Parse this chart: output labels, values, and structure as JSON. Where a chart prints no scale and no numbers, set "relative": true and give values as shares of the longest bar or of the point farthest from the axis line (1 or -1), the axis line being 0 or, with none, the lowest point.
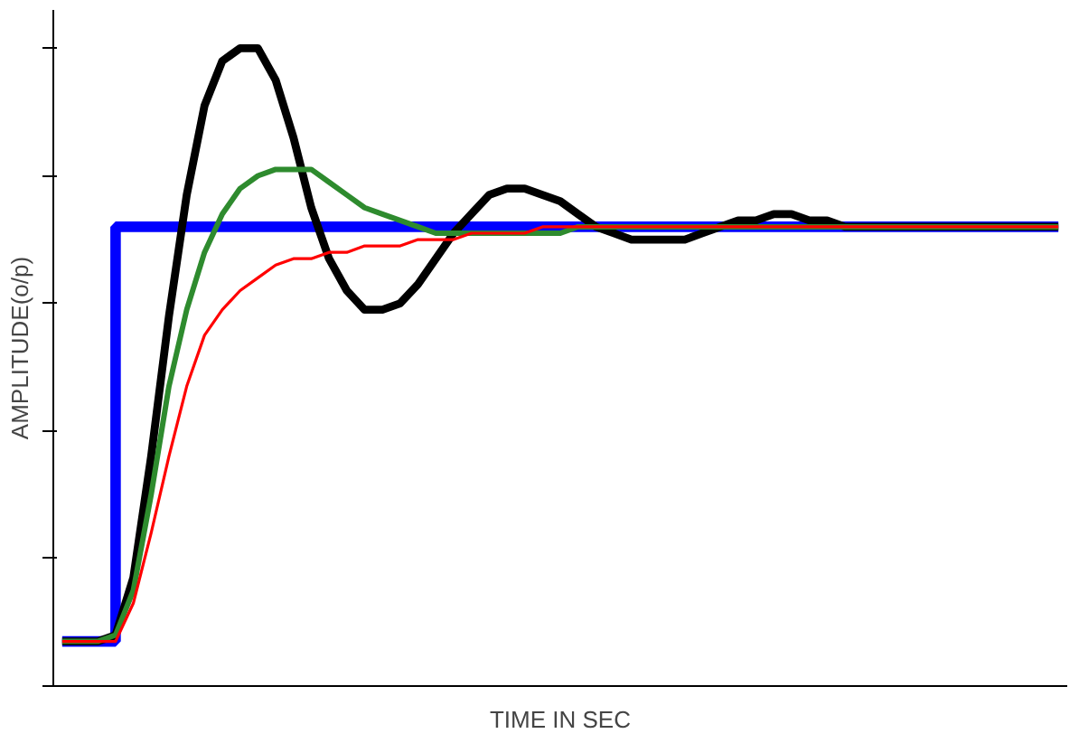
{
  "chart_data": {
    "type": "line",
    "xlabel": "TIME IN SEC",
    "ylabel": "AMPLITUDE(o/p)",
    "relative": true,
    "grid": false,
    "tick_labels": false,
    "categories": [
      null,
      null,
      null,
      null,
      null,
      null,
      null,
      null,
      null,
      null,
      null,
      null,
      null,
      null,
      null,
      null,
      null,
      null,
      null,
      null,
      null,
      null,
      null,
      null,
      null,
      null,
      null,
      null,
      null,
      null,
      null,
      null,
      null,
      null,
      null,
      null,
      null,
      null,
      null,
      null,
      null,
      null,
      null,
      null,
      null,
      null,
      null,
      null,
      null,
      null,
      null,
      null,
      null,
      null,
      null,
      null,
      null
    ],
    "series": [
      {
        "type": "step",
        "color": "#0000ff",
        "values": [
          0.07,
          0.07,
          0.07,
          0.72,
          0.72,
          0.72,
          0.72,
          0.72,
          0.72,
          0.72,
          0.72,
          0.72,
          0.72,
          0.72,
          0.72,
          0.72,
          0.72,
          0.72,
          0.72,
          0.72,
          0.72,
          0.72,
          0.72,
          0.72,
          0.72,
          0.72,
          0.72,
          0.72,
          0.72,
          0.72,
          0.72,
          0.72,
          0.72,
          0.72,
          0.72,
          0.72,
          0.72,
          0.72,
          0.72,
          0.72,
          0.72,
          0.72,
          0.72,
          0.72,
          0.72,
          0.72,
          0.72,
          0.72,
          0.72,
          0.72,
          0.72,
          0.72,
          0.72,
          0.72,
          0.72,
          0.72,
          0.72
        ]
      },
      {
        "color": "#000000",
        "values": [
          0.07,
          0.07,
          0.07,
          0.08,
          0.17,
          0.36,
          0.58,
          0.77,
          0.91,
          0.98,
          1.0,
          1.0,
          0.95,
          0.86,
          0.75,
          0.67,
          0.62,
          0.59,
          0.59,
          0.6,
          0.63,
          0.67,
          0.71,
          0.74,
          0.77,
          0.78,
          0.78,
          0.77,
          0.76,
          0.74,
          0.72,
          0.71,
          0.7,
          0.7,
          0.7,
          0.7,
          0.71,
          0.72,
          0.73,
          0.73,
          0.74,
          0.74,
          0.73,
          0.73,
          0.72,
          0.72,
          0.72,
          0.72,
          0.72,
          0.72,
          0.72,
          0.72,
          0.72,
          0.72,
          0.72,
          0.72,
          0.72
        ]
      },
      {
        "color": "#2e8b2e",
        "values": [
          0.07,
          0.07,
          0.07,
          0.08,
          0.15,
          0.3,
          0.47,
          0.59,
          0.68,
          0.74,
          0.78,
          0.8,
          0.81,
          0.81,
          0.81,
          0.79,
          0.77,
          0.75,
          0.74,
          0.73,
          0.72,
          0.71,
          0.71,
          0.71,
          0.71,
          0.71,
          0.71,
          0.71,
          0.71,
          0.72,
          0.72,
          0.72,
          0.72,
          0.72,
          0.72,
          0.72,
          0.72,
          0.72,
          0.72,
          0.72,
          0.72,
          0.72,
          0.72,
          0.72,
          0.72,
          0.72,
          0.72,
          0.72,
          0.72,
          0.72,
          0.72,
          0.72,
          0.72,
          0.72,
          0.72,
          0.72,
          0.72
        ]
      },
      {
        "color": "#ff0000",
        "values": [
          0.07,
          0.07,
          0.07,
          0.07,
          0.13,
          0.24,
          0.36,
          0.47,
          0.55,
          0.59,
          0.62,
          0.64,
          0.66,
          0.67,
          0.67,
          0.68,
          0.68,
          0.69,
          0.69,
          0.69,
          0.7,
          0.7,
          0.7,
          0.71,
          0.71,
          0.71,
          0.71,
          0.72,
          0.72,
          0.72,
          0.72,
          0.72,
          0.72,
          0.72,
          0.72,
          0.72,
          0.72,
          0.72,
          0.72,
          0.72,
          0.72,
          0.72,
          0.72,
          0.72,
          0.72,
          0.72,
          0.72,
          0.72,
          0.72,
          0.72,
          0.72,
          0.72,
          0.72,
          0.72,
          0.72,
          0.72,
          0.72
        ]
      }
    ]
  }
}
